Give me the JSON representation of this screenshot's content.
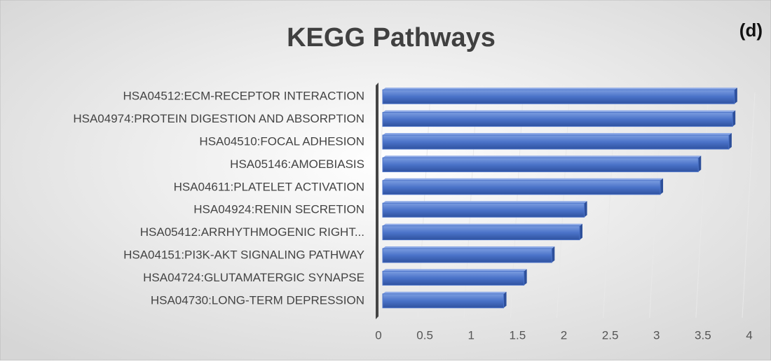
{
  "chart_data": {
    "type": "hbar",
    "title": "KEGG Pathways",
    "annotation": "(d)",
    "categories": [
      "HSA04512:ECM-RECEPTOR INTERACTION",
      "HSA04974:PROTEIN DIGESTION AND ABSORPTION",
      "HSA04510:FOCAL ADHESION",
      "HSA05146:AMOEBIASIS",
      "HSA04611:PLATELET ACTIVATION",
      "HSA04924:RENIN SECRETION",
      "HSA05412:ARRHYTHMOGENIC RIGHT...",
      "HSA04151:PI3K-AKT SIGNALING PATHWAY",
      "HSA04724:GLUTAMATERGIC SYNAPSE",
      "HSA04730:LONG-TERM DEPRESSION"
    ],
    "values": [
      3.84,
      3.82,
      3.78,
      3.45,
      3.04,
      2.22,
      2.17,
      1.87,
      1.57,
      1.35
    ],
    "color": "#4a72c8",
    "xlim": [
      0,
      4
    ],
    "xticks": [
      0,
      0.5,
      1,
      1.5,
      2,
      2.5,
      3,
      3.5,
      4
    ]
  }
}
